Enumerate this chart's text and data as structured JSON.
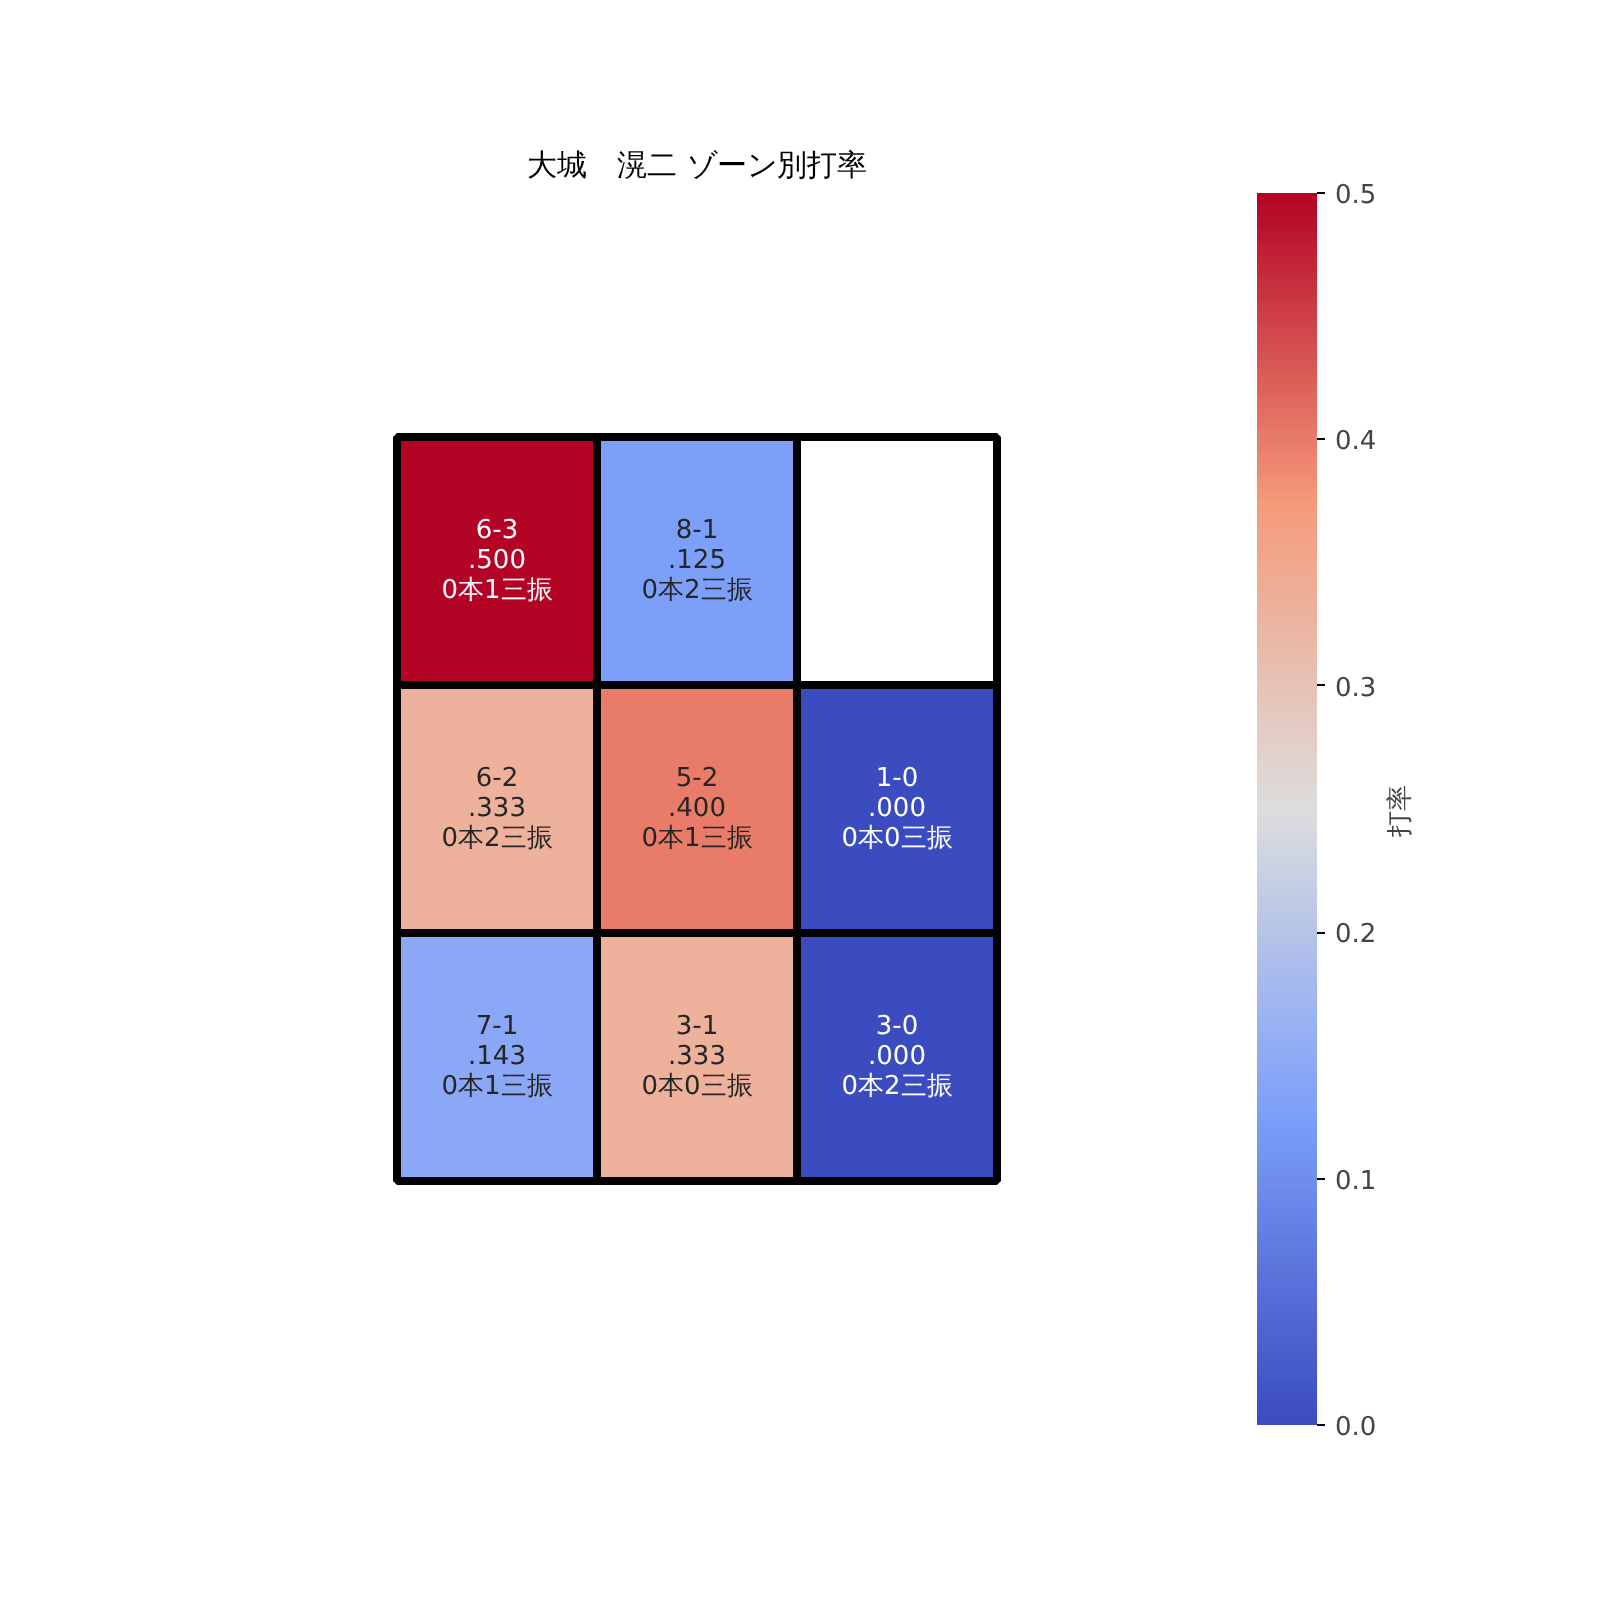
{
  "chart_data": {
    "type": "heatmap",
    "title": "大城　滉二 ゾーン別打率",
    "categories": [
      null,
      null,
      null
    ],
    "y_categories": [
      null,
      null,
      null
    ],
    "cells": [
      [
        0.5,
        0.125,
        null
      ],
      [
        0.333,
        0.4,
        0.0
      ],
      [
        0.143,
        0.333,
        0.0
      ]
    ],
    "cell_labels": [
      [
        "6-3\n.500\n0本1三振",
        "8-1\n.125\n0本2三振",
        null
      ],
      [
        "6-2\n.333\n0本2三振",
        "5-2\n.400\n0本1三振",
        "1-0\n.000\n0本0三振"
      ],
      [
        "7-1\n.143\n0本1三振",
        "3-1\n.333\n0本0三振",
        "3-0\n.000\n0本2三振"
      ]
    ],
    "clim": [
      0,
      0.5
    ],
    "cticks": [
      {
        "value": 0,
        "label": "0.0"
      },
      0.1,
      0.2,
      0.3,
      0.4,
      0.5
    ],
    "clabel": "打率"
  }
}
